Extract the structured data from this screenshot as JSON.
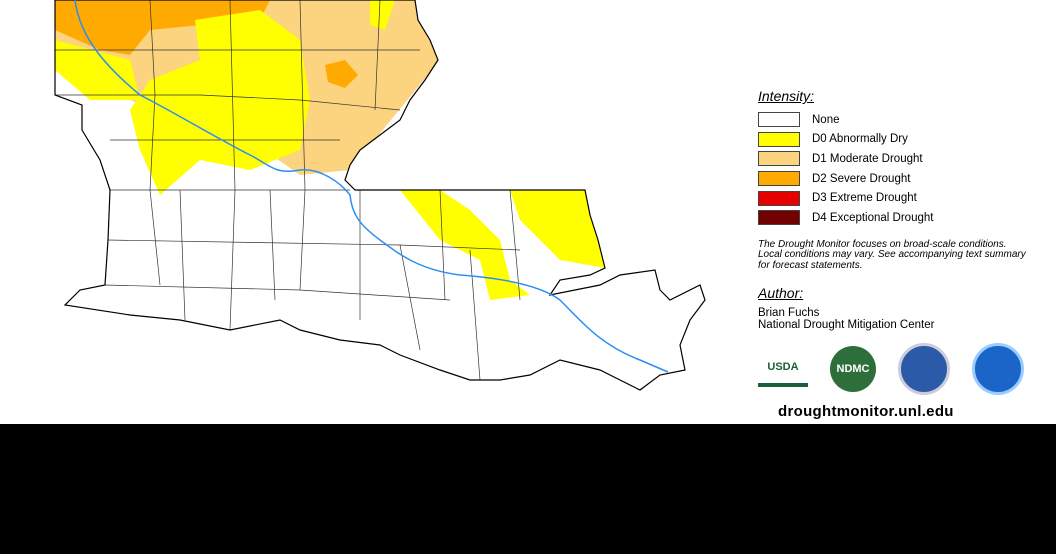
{
  "legend": {
    "title": "Intensity:",
    "items": [
      {
        "label": "None",
        "color": "#ffffff"
      },
      {
        "label": "D0 Abnormally Dry",
        "color": "#ffff00"
      },
      {
        "label": "D1 Moderate Drought",
        "color": "#fcd37f"
      },
      {
        "label": "D2 Severe Drought",
        "color": "#ffaa00"
      },
      {
        "label": "D3 Extreme Drought",
        "color": "#e60000"
      },
      {
        "label": "D4 Exceptional Drought",
        "color": "#730000"
      }
    ]
  },
  "note": "The Drought Monitor focuses on broad-scale conditions. Local conditions may vary. See accompanying text summary for forecast statements.",
  "author": {
    "title": "Author:",
    "name": "Brian Fuchs",
    "organization": "National Drought Mitigation Center"
  },
  "logos": [
    "USDA",
    "NDMC"
  ],
  "website": "droughtmonitor.unl.edu"
}
